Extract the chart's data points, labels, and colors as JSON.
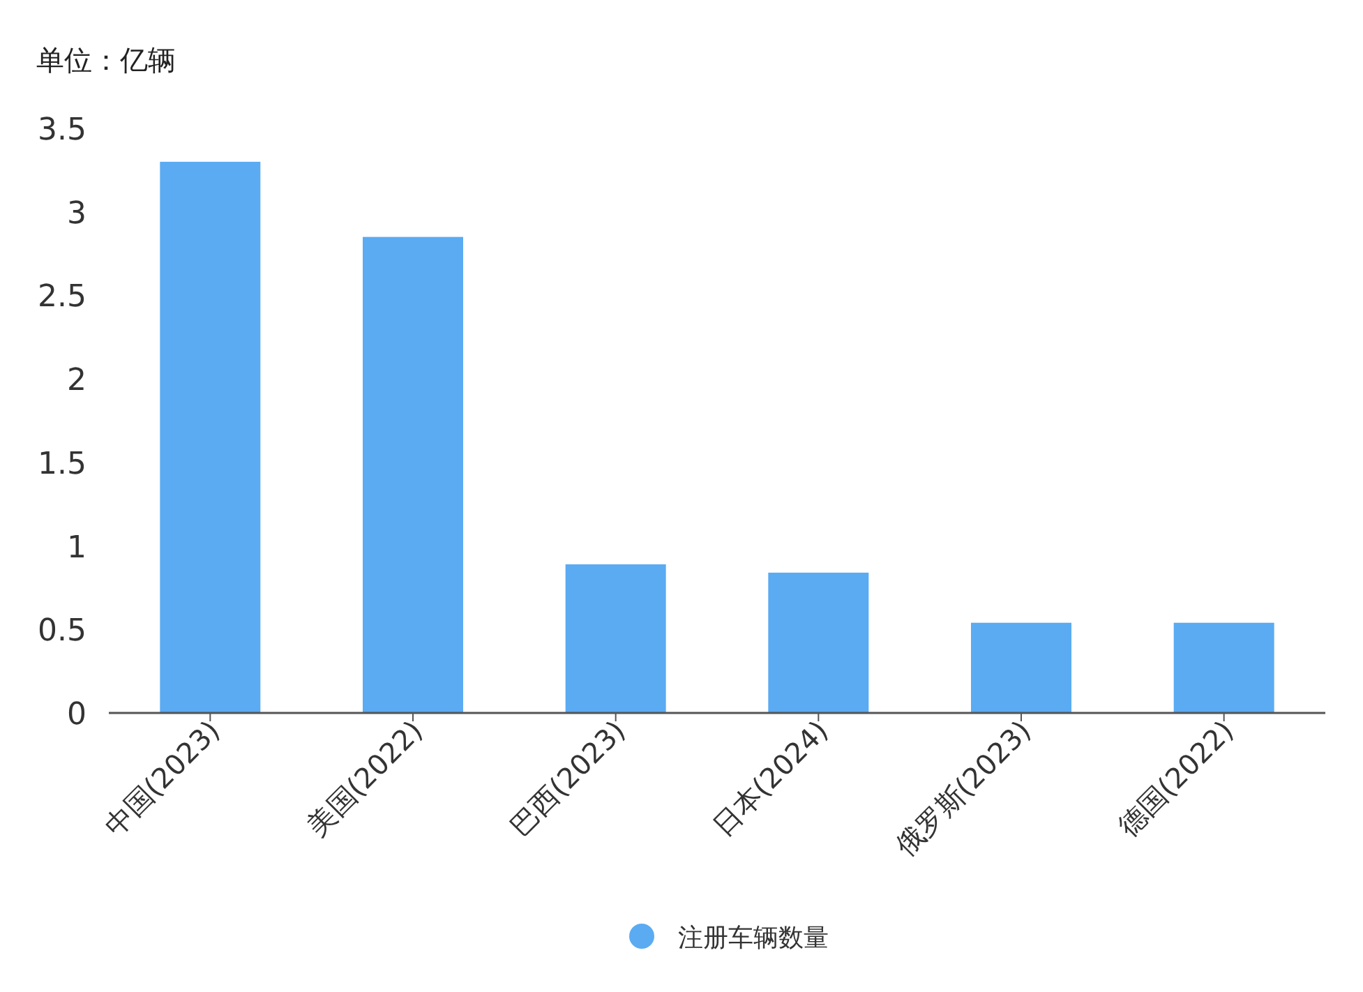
{
  "chart_data": {
    "type": "bar",
    "ylabel": "单位：亿辆",
    "categories": [
      "中国(2023)",
      "美国(2022)",
      "巴西(2023)",
      "日本(2024)",
      "俄罗斯(2023)",
      "德国(2022)"
    ],
    "series": [
      {
        "name": "注册车辆数量",
        "color": "#5aabf2",
        "values": [
          3.3,
          2.85,
          0.89,
          0.84,
          0.54,
          0.54
        ]
      }
    ],
    "ylim": [
      0,
      3.5
    ],
    "yticks": [
      0,
      0.5,
      1,
      1.5,
      2,
      2.5,
      3,
      3.5
    ],
    "grid": false,
    "legend": "bottom"
  }
}
